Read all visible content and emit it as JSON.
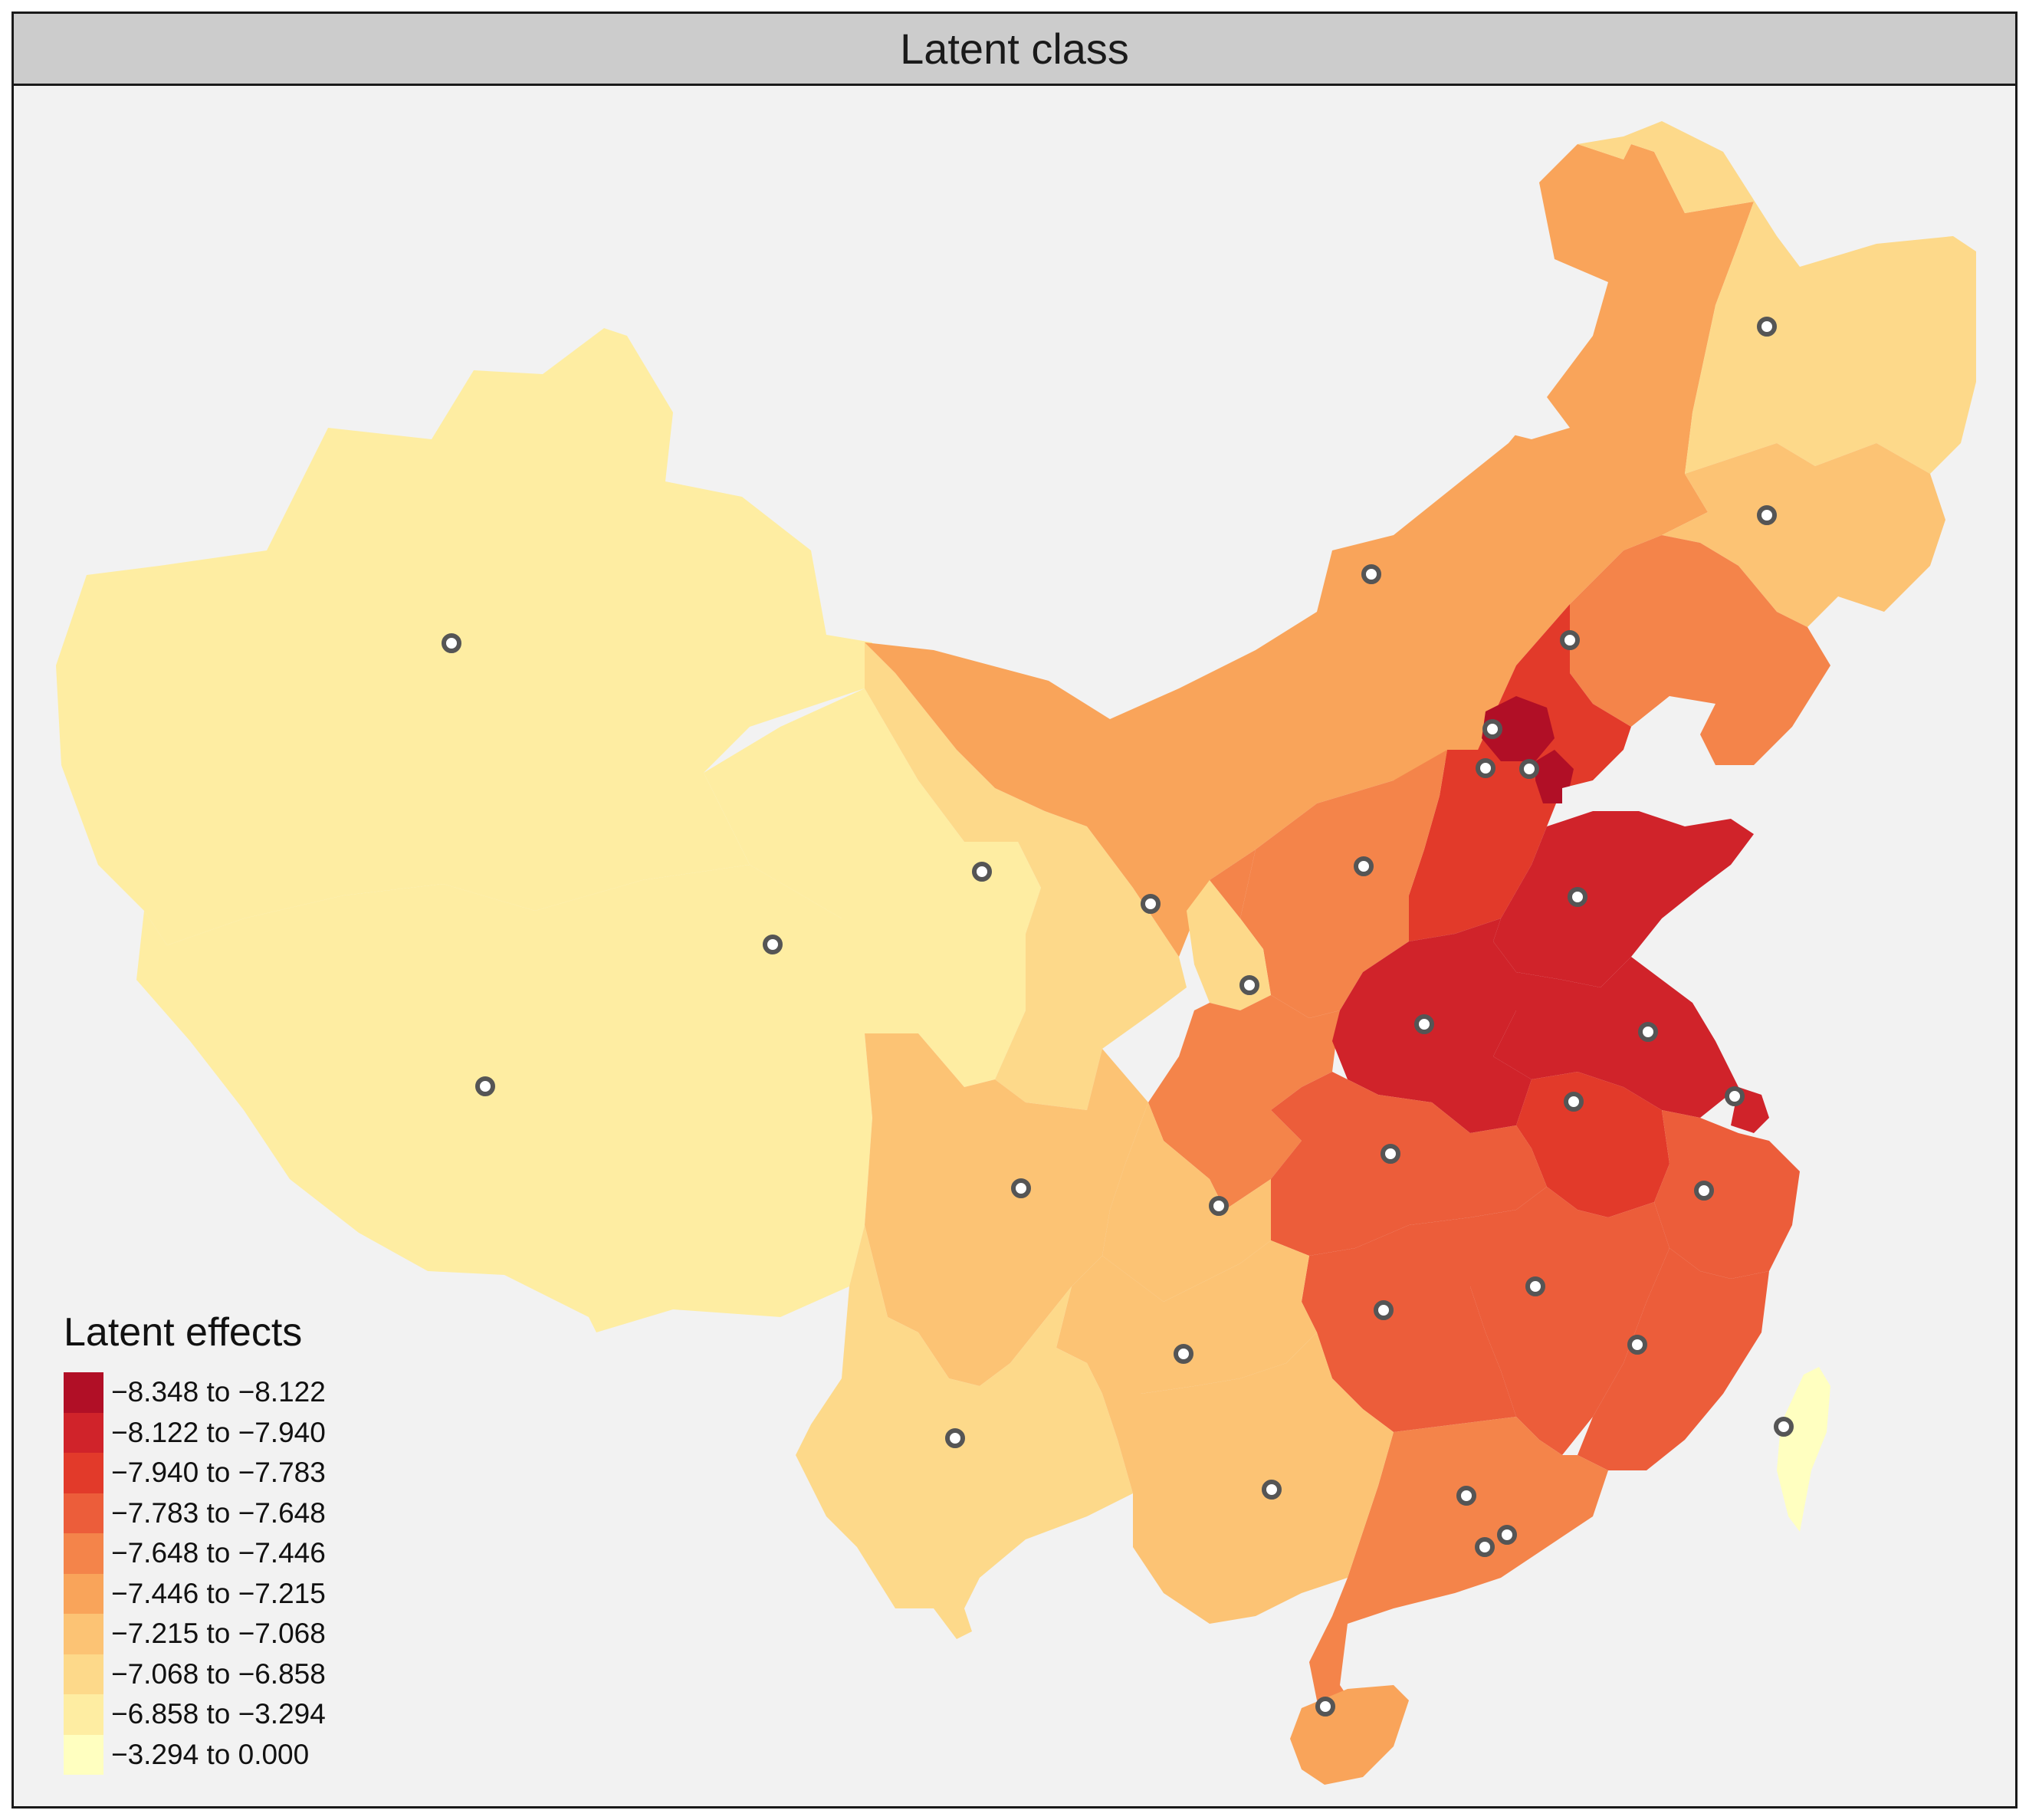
{
  "panel": {
    "title": "Latent class"
  },
  "legend": {
    "title": "Latent effects",
    "items": [
      {
        "label": "−8.348 to −8.122",
        "color": "#b10f26"
      },
      {
        "label": "−8.122 to −7.940",
        "color": "#d0232a"
      },
      {
        "label": "−7.940 to −7.783",
        "color": "#e23a2a"
      },
      {
        "label": "−7.783 to −7.648",
        "color": "#ec5d3a"
      },
      {
        "label": "−7.648 to −7.446",
        "color": "#f4844a"
      },
      {
        "label": "−7.446 to −7.215",
        "color": "#f9a45a"
      },
      {
        "label": "−7.215 to −7.068",
        "color": "#fcc374"
      },
      {
        "label": "−7.068 to −6.858",
        "color": "#fdd98a"
      },
      {
        "label": "−6.858 to −3.294",
        "color": "#feeda2"
      },
      {
        "label": "−3.294 to 0.000",
        "color": "#ffffc0"
      }
    ]
  },
  "colors": {
    "background": "#f2f2f2",
    "strip": "#cccccc",
    "marker_stroke": "#555555",
    "marker_fill": "#ffffff"
  }
}
